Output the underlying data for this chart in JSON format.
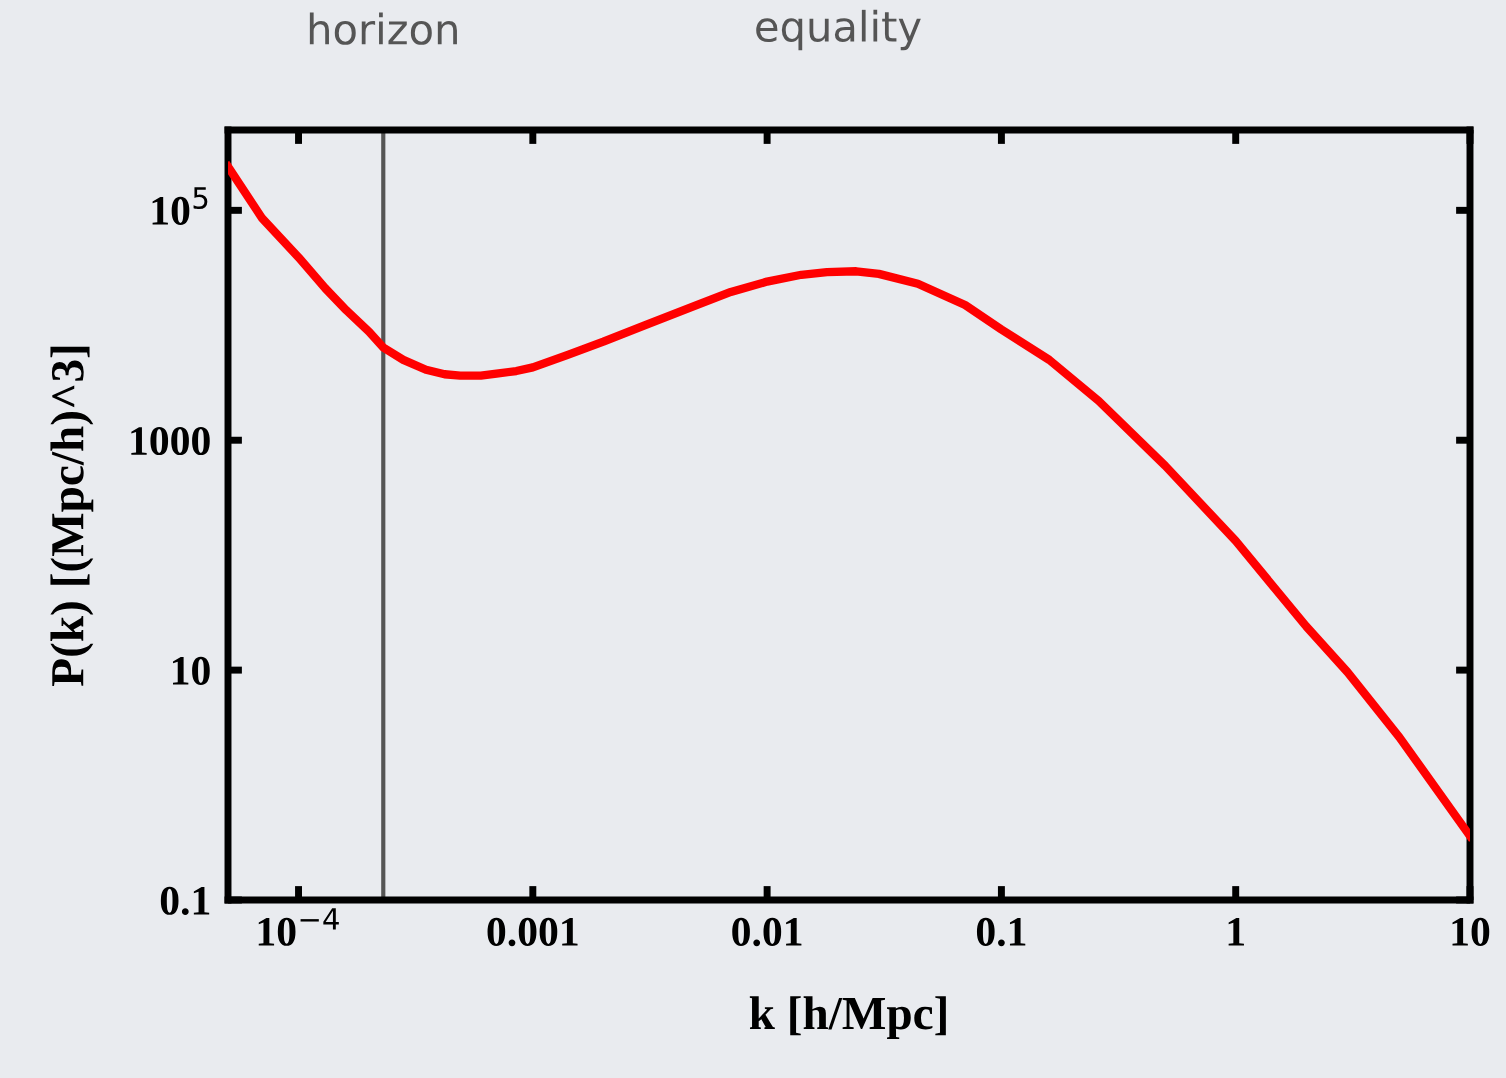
{
  "chart_data": {
    "type": "line",
    "xlabel": "k [h/Mpc]",
    "ylabel": "P(k) [(Mpc/h)^3]",
    "log": "xy",
    "grid": false,
    "marker": "none",
    "line_style": "solid",
    "xlim": [
      5e-05,
      10
    ],
    "ylim": [
      0.1,
      500000
    ],
    "xticks": [
      {
        "value": 0.0001,
        "label": "10$^{−4}$"
      },
      0.001,
      0.01,
      0.1,
      1,
      10
    ],
    "yticks": [
      0.1,
      10,
      1000,
      {
        "value": 100000,
        "label": "10$^{5}$"
      }
    ],
    "x": [
      5e-05,
      7e-05,
      0.0001,
      0.00013,
      0.00016,
      0.0002,
      0.00023,
      0.00028,
      0.00035,
      0.00042,
      0.00049,
      0.0006,
      0.0007,
      0.00085,
      0.001,
      0.0014,
      0.002,
      0.003,
      0.005,
      0.007,
      0.01,
      0.014,
      0.018,
      0.024,
      0.03,
      0.044,
      0.07,
      0.1,
      0.16,
      0.26,
      0.5,
      1,
      2,
      3,
      5,
      10
    ],
    "series": [
      {
        "color": "#ff0000",
        "values": [
          240000,
          85000,
          39000,
          21000,
          13500,
          8800,
          6400,
          5000,
          4100,
          3750,
          3650,
          3650,
          3800,
          4000,
          4300,
          5500,
          7200,
          10000,
          15000,
          19500,
          24000,
          27500,
          29000,
          29500,
          28000,
          23000,
          15000,
          9200,
          5000,
          2200,
          600,
          133,
          24,
          9.6,
          2.6,
          0.36
        ]
      }
    ],
    "ref_lines": [
      {
        "axis": "x",
        "value": 0.00023,
        "label": "horizon",
        "color": "#555555"
      }
    ],
    "annotations": [
      "equality"
    ]
  }
}
